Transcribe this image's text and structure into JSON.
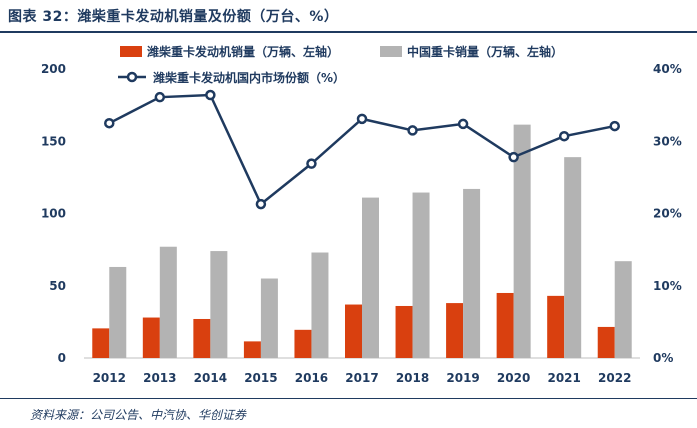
{
  "title": "图表 32：潍柴重卡发动机销量及份额（万台、%）",
  "source": "资料来源：公司公告、中汽协、华创证券",
  "colors": {
    "bar1": "#d9400f",
    "bar2": "#b3b3b3",
    "line": "#1f3a5f",
    "text": "#1f3a5f"
  },
  "chart_data": {
    "type": "bar",
    "categories": [
      "2012",
      "2013",
      "2014",
      "2015",
      "2016",
      "2017",
      "2018",
      "2019",
      "2020",
      "2021",
      "2022"
    ],
    "series": [
      {
        "name": "潍柴重卡发动机销量（万辆、左轴）",
        "kind": "bar",
        "axis": "left",
        "values": [
          20.5,
          28,
          27,
          11.5,
          19.5,
          37,
          36,
          38,
          45,
          43,
          21.5
        ]
      },
      {
        "name": "中国重卡销量（万辆、左轴）",
        "kind": "bar",
        "axis": "left",
        "values": [
          63,
          77,
          74,
          55,
          73,
          111,
          114.5,
          117,
          161.5,
          139,
          67
        ]
      },
      {
        "name": "潍柴重卡发动机国内市场份额（%）",
        "kind": "line",
        "axis": "right",
        "values": [
          32.5,
          36.1,
          36.4,
          21.3,
          26.9,
          33.1,
          31.5,
          32.4,
          27.8,
          30.7,
          32.1
        ]
      }
    ],
    "ylim_left": [
      0,
      200
    ],
    "yticks_left": [
      "0",
      "50",
      "100",
      "150",
      "200"
    ],
    "ylim_right": [
      0,
      40
    ],
    "yticks_right": [
      "0%",
      "10%",
      "20%",
      "30%",
      "40%"
    ],
    "grid": false,
    "legend_position": "top"
  }
}
